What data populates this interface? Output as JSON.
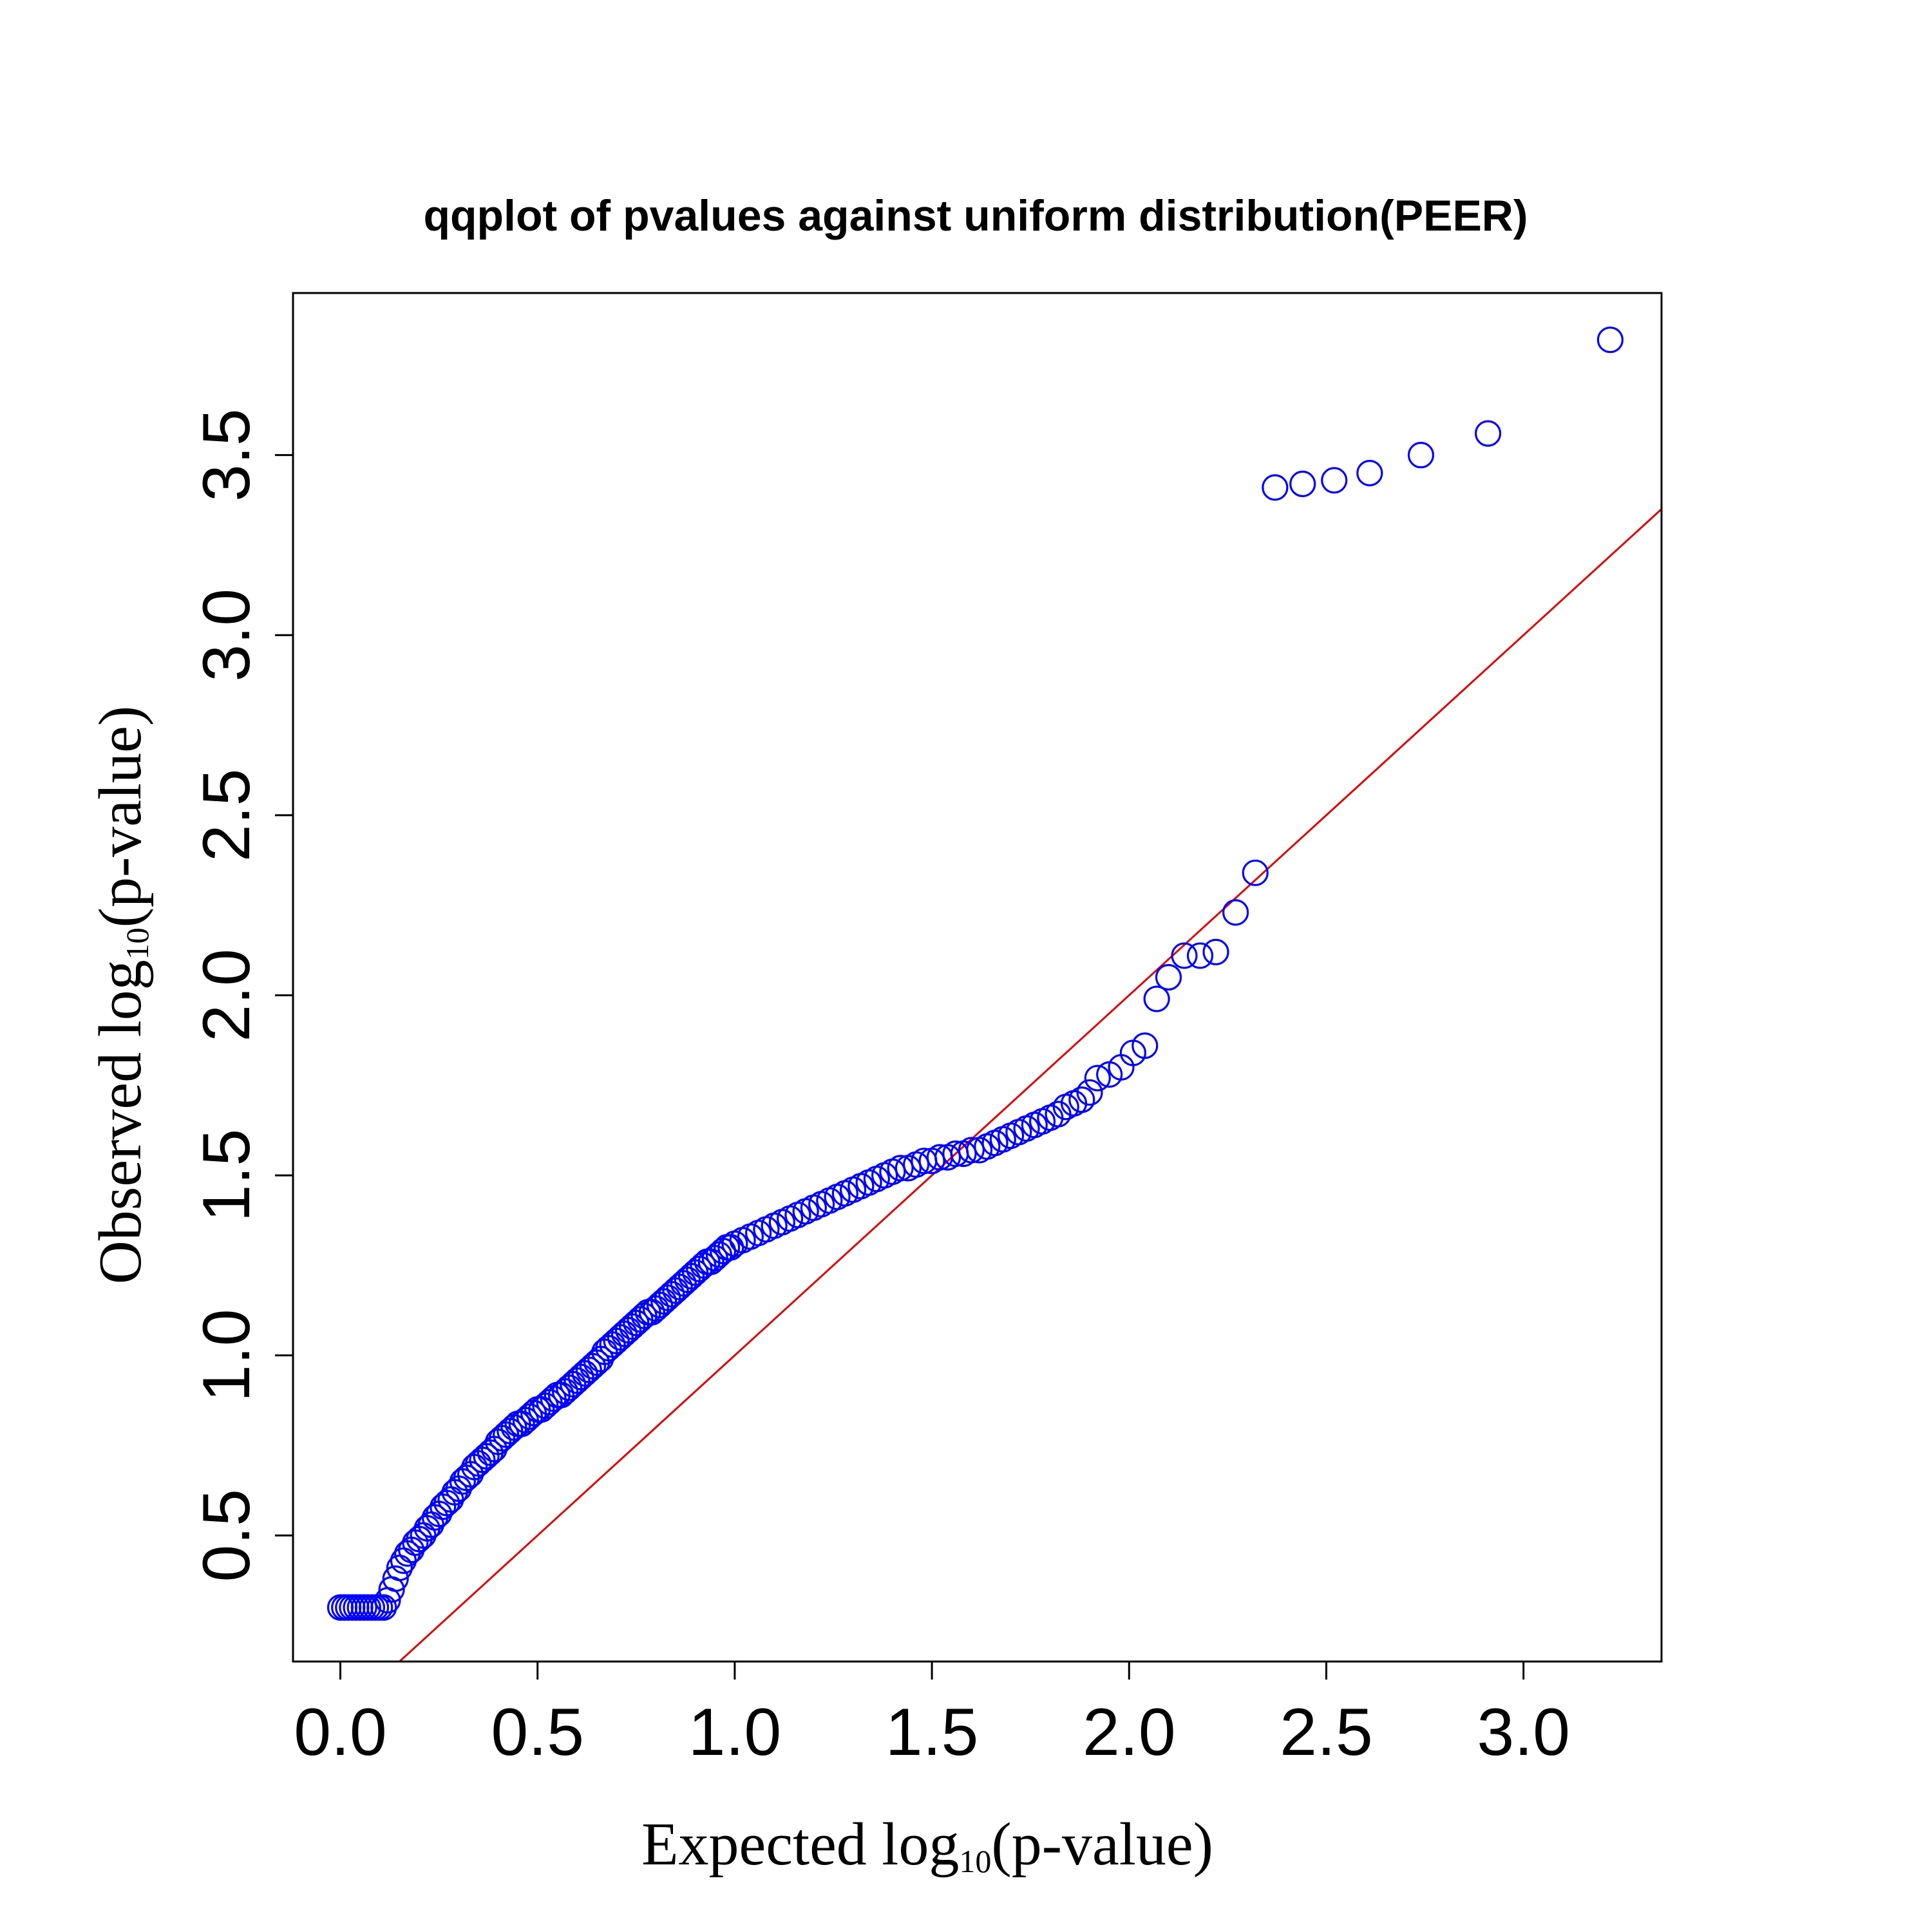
{
  "chart_data": {
    "type": "scatter",
    "title": "qqplot of pvalues against uniform distribution(PEER)",
    "xlabel": {
      "main": "Expected log",
      "sub": "10",
      "suffix": "(p-value)"
    },
    "ylabel": {
      "main": "Observed log",
      "sub": "10",
      "suffix": "(p-value)"
    },
    "xlim": [
      -0.12,
      3.35
    ],
    "ylim": [
      0.15,
      3.95
    ],
    "x_ticks": [
      "0.0",
      "0.5",
      "1.0",
      "1.5",
      "2.0",
      "2.5",
      "3.0"
    ],
    "y_ticks": [
      "0.5",
      "1.0",
      "1.5",
      "2.0",
      "2.5",
      "3.0",
      "3.5"
    ],
    "point_color": "#0000ff",
    "line_color": "#dd0000",
    "reference_line": {
      "intercept": 0,
      "slope": 1
    },
    "series": [
      {
        "points": [
          [
            0.0,
            0.3
          ],
          [
            0.01,
            0.3
          ],
          [
            0.02,
            0.3
          ],
          [
            0.03,
            0.3
          ],
          [
            0.04,
            0.3
          ],
          [
            0.05,
            0.3
          ],
          [
            0.06,
            0.3
          ],
          [
            0.07,
            0.3
          ],
          [
            0.08,
            0.3
          ],
          [
            0.09,
            0.3
          ],
          [
            0.1,
            0.3
          ],
          [
            0.11,
            0.3
          ],
          [
            0.12,
            0.32
          ],
          [
            0.13,
            0.35
          ],
          [
            0.14,
            0.38
          ],
          [
            0.15,
            0.41
          ],
          [
            0.16,
            0.43
          ],
          [
            0.17,
            0.45
          ],
          [
            0.18,
            0.46
          ],
          [
            0.19,
            0.48
          ],
          [
            0.2,
            0.49
          ],
          [
            0.21,
            0.5
          ],
          [
            0.22,
            0.52
          ],
          [
            0.23,
            0.53
          ],
          [
            0.24,
            0.55
          ],
          [
            0.25,
            0.56
          ],
          [
            0.26,
            0.58
          ],
          [
            0.27,
            0.59
          ],
          [
            0.28,
            0.6
          ],
          [
            0.29,
            0.62
          ],
          [
            0.3,
            0.63
          ],
          [
            0.31,
            0.65
          ],
          [
            0.32,
            0.66
          ],
          [
            0.33,
            0.67
          ],
          [
            0.34,
            0.69
          ],
          [
            0.35,
            0.7
          ],
          [
            0.36,
            0.71
          ],
          [
            0.37,
            0.72
          ],
          [
            0.38,
            0.73
          ],
          [
            0.39,
            0.74
          ],
          [
            0.4,
            0.76
          ],
          [
            0.41,
            0.77
          ],
          [
            0.42,
            0.78
          ],
          [
            0.43,
            0.79
          ],
          [
            0.44,
            0.8
          ],
          [
            0.45,
            0.81
          ],
          [
            0.46,
            0.81
          ],
          [
            0.47,
            0.82
          ],
          [
            0.48,
            0.83
          ],
          [
            0.49,
            0.84
          ],
          [
            0.5,
            0.85
          ],
          [
            0.51,
            0.85
          ],
          [
            0.52,
            0.86
          ],
          [
            0.53,
            0.87
          ],
          [
            0.54,
            0.88
          ],
          [
            0.55,
            0.89
          ],
          [
            0.56,
            0.89
          ],
          [
            0.57,
            0.9
          ],
          [
            0.58,
            0.91
          ],
          [
            0.59,
            0.92
          ],
          [
            0.6,
            0.93
          ],
          [
            0.61,
            0.94
          ],
          [
            0.62,
            0.95
          ],
          [
            0.63,
            0.96
          ],
          [
            0.64,
            0.97
          ],
          [
            0.65,
            0.98
          ],
          [
            0.66,
            0.99
          ],
          [
            0.67,
            1.01
          ],
          [
            0.68,
            1.02
          ],
          [
            0.69,
            1.03
          ],
          [
            0.7,
            1.04
          ],
          [
            0.71,
            1.05
          ],
          [
            0.72,
            1.06
          ],
          [
            0.73,
            1.07
          ],
          [
            0.74,
            1.08
          ],
          [
            0.75,
            1.09
          ],
          [
            0.76,
            1.1
          ],
          [
            0.77,
            1.11
          ],
          [
            0.78,
            1.12
          ],
          [
            0.79,
            1.12
          ],
          [
            0.8,
            1.13
          ],
          [
            0.81,
            1.14
          ],
          [
            0.82,
            1.15
          ],
          [
            0.83,
            1.16
          ],
          [
            0.84,
            1.17
          ],
          [
            0.85,
            1.18
          ],
          [
            0.86,
            1.19
          ],
          [
            0.87,
            1.2
          ],
          [
            0.88,
            1.21
          ],
          [
            0.89,
            1.22
          ],
          [
            0.9,
            1.23
          ],
          [
            0.91,
            1.24
          ],
          [
            0.92,
            1.25
          ],
          [
            0.93,
            1.26
          ],
          [
            0.94,
            1.26
          ],
          [
            0.95,
            1.27
          ],
          [
            0.96,
            1.28
          ],
          [
            0.97,
            1.29
          ],
          [
            0.98,
            1.3
          ],
          [
            0.99,
            1.3
          ],
          [
            1.0,
            1.31
          ],
          [
            1.02,
            1.32
          ],
          [
            1.04,
            1.33
          ],
          [
            1.06,
            1.34
          ],
          [
            1.08,
            1.35
          ],
          [
            1.1,
            1.36
          ],
          [
            1.12,
            1.37
          ],
          [
            1.14,
            1.38
          ],
          [
            1.16,
            1.39
          ],
          [
            1.18,
            1.4
          ],
          [
            1.2,
            1.41
          ],
          [
            1.22,
            1.42
          ],
          [
            1.24,
            1.43
          ],
          [
            1.26,
            1.44
          ],
          [
            1.28,
            1.45
          ],
          [
            1.3,
            1.46
          ],
          [
            1.32,
            1.47
          ],
          [
            1.34,
            1.48
          ],
          [
            1.36,
            1.49
          ],
          [
            1.38,
            1.5
          ],
          [
            1.4,
            1.51
          ],
          [
            1.42,
            1.52
          ],
          [
            1.44,
            1.52
          ],
          [
            1.46,
            1.53
          ],
          [
            1.48,
            1.54
          ],
          [
            1.5,
            1.54
          ],
          [
            1.52,
            1.55
          ],
          [
            1.54,
            1.55
          ],
          [
            1.56,
            1.56
          ],
          [
            1.58,
            1.56
          ],
          [
            1.6,
            1.57
          ],
          [
            1.62,
            1.57
          ],
          [
            1.64,
            1.58
          ],
          [
            1.66,
            1.59
          ],
          [
            1.68,
            1.6
          ],
          [
            1.7,
            1.61
          ],
          [
            1.72,
            1.62
          ],
          [
            1.74,
            1.63
          ],
          [
            1.76,
            1.64
          ],
          [
            1.78,
            1.65
          ],
          [
            1.8,
            1.66
          ],
          [
            1.82,
            1.67
          ],
          [
            1.84,
            1.69
          ],
          [
            1.86,
            1.7
          ],
          [
            1.88,
            1.71
          ],
          [
            1.9,
            1.73
          ],
          [
            1.92,
            1.77
          ],
          [
            1.95,
            1.78
          ],
          [
            1.98,
            1.8
          ],
          [
            2.01,
            1.84
          ],
          [
            2.04,
            1.86
          ],
          [
            2.07,
            1.99
          ],
          [
            2.1,
            2.05
          ],
          [
            2.14,
            2.11
          ],
          [
            2.18,
            2.11
          ],
          [
            2.22,
            2.12
          ],
          [
            2.27,
            2.23
          ],
          [
            2.32,
            2.34
          ],
          [
            2.37,
            3.41
          ],
          [
            2.44,
            3.42
          ],
          [
            2.52,
            3.43
          ],
          [
            2.61,
            3.45
          ],
          [
            2.74,
            3.5
          ],
          [
            2.91,
            3.56
          ],
          [
            3.22,
            3.82
          ]
        ]
      }
    ]
  }
}
